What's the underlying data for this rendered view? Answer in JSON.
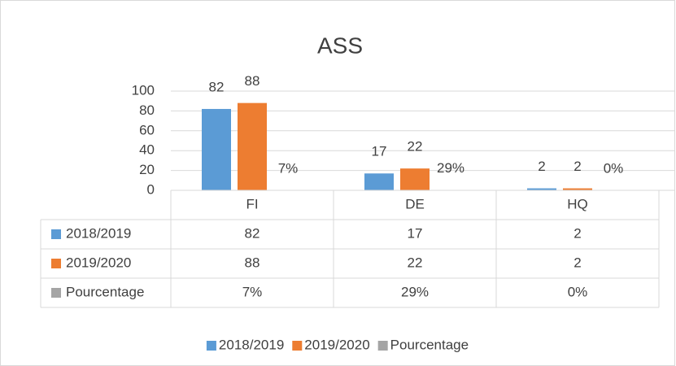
{
  "chart_data": {
    "type": "bar",
    "title": "ASS",
    "categories": [
      "FI",
      "DE",
      "HQ"
    ],
    "series": [
      {
        "name": "2018/2019",
        "color": "#5b9bd5",
        "values": [
          82,
          17,
          2
        ]
      },
      {
        "name": "2019/2020",
        "color": "#ed7d31",
        "values": [
          88,
          22,
          2
        ]
      },
      {
        "name": "Pourcentage",
        "color": "#a5a5a5",
        "values": [
          0.07,
          0.29,
          0
        ],
        "value_labels": [
          "7%",
          "29%",
          "0%"
        ]
      }
    ],
    "ylim": [
      0,
      100
    ],
    "yticks": [
      0,
      20,
      40,
      60,
      80,
      100
    ],
    "grid": true,
    "legend": "bottom",
    "data_table": true
  }
}
